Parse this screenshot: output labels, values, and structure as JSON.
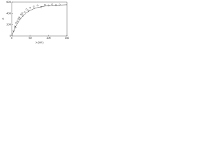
{
  "chart_data": {
    "type": "scatter",
    "xlabel": "x (nm)",
    "ylabel": "C",
    "xlim": [
      0,
      150
    ],
    "xticks": [
      0,
      50,
      100,
      150
    ],
    "ylim": [
      0,
      600
    ],
    "yticks": [
      0,
      200,
      400,
      600
    ],
    "series": [
      {
        "kind": "points",
        "color": "#333333",
        "x": [
          5,
          8,
          10,
          12,
          15,
          18,
          20,
          22,
          25,
          28,
          30,
          35,
          40,
          45,
          50,
          60,
          70,
          80,
          90,
          100,
          110,
          120,
          130
        ],
        "values": [
          90,
          170,
          150,
          230,
          260,
          300,
          330,
          310,
          380,
          400,
          360,
          420,
          470,
          450,
          500,
          520,
          540,
          510,
          550,
          540,
          560,
          545,
          555
        ]
      },
      {
        "kind": "line",
        "color": "#333333",
        "x": [
          0,
          10,
          20,
          30,
          40,
          50,
          60,
          70,
          80,
          90,
          100,
          110,
          120,
          130,
          140,
          150
        ],
        "values": [
          0,
          159,
          272,
          353,
          411,
          452,
          482,
          503,
          518,
          528,
          536,
          541,
          545,
          548,
          550,
          552
        ]
      }
    ]
  }
}
